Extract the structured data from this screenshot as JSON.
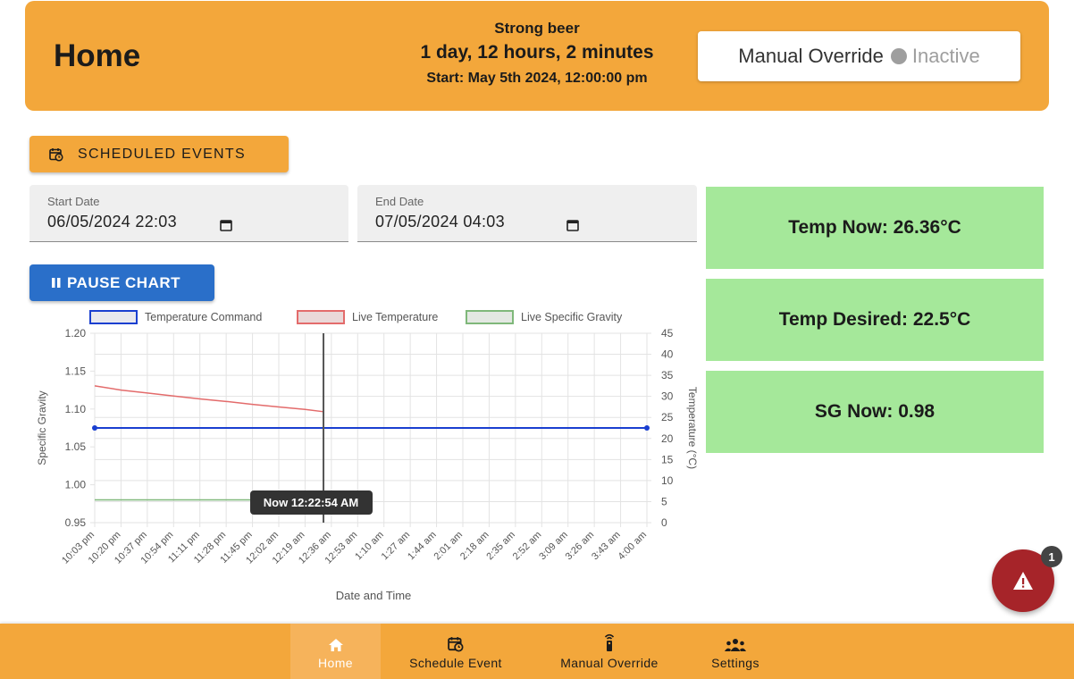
{
  "header": {
    "title": "Home",
    "brew_name": "Strong beer",
    "duration": "1 day, 12 hours, 2 minutes",
    "start": "Start: May 5th 2024, 12:00:00 pm",
    "override_label": "Manual Override",
    "override_status": "Inactive"
  },
  "scheduled_events_label": "SCHEDULED EVENTS",
  "date_range": {
    "start_label": "Start Date",
    "start_value": "06/05/2024 22:03",
    "end_label": "End Date",
    "end_value": "07/05/2024 04:03"
  },
  "pause_label": "PAUSE CHART",
  "stats": {
    "temp_now": "Temp Now: 26.36°C",
    "temp_desired": "Temp Desired: 22.5°C",
    "sg_now": "SG Now: 0.98"
  },
  "alert": {
    "count": "1",
    "icon": "warning-icon"
  },
  "nav": [
    {
      "label": "Home",
      "icon": "home-icon",
      "active": true
    },
    {
      "label": "Schedule Event",
      "icon": "calendar-clock-icon",
      "active": false
    },
    {
      "label": "Manual Override",
      "icon": "remote-icon",
      "active": false
    },
    {
      "label": "Settings",
      "icon": "group-icon",
      "active": false
    }
  ],
  "colors": {
    "accent": "#f3a73b",
    "pause": "#2a6fc9",
    "stat_bg": "#a5e89a",
    "alert": "#a62429",
    "temp_command": "#1a3fd0",
    "live_temp": "#e36b6b",
    "live_sg": "#7fb87a"
  },
  "chart_data": {
    "type": "line",
    "xlabel": "Date and Time",
    "ylabel_left": "Specific Gravity",
    "ylabel_right": "Temperature (°C)",
    "ylim_left": [
      0.95,
      1.2
    ],
    "yticks_left": [
      "1.20",
      "1.15",
      "1.10",
      "1.05",
      "1.00",
      "0.95"
    ],
    "ylim_right": [
      0,
      45
    ],
    "yticks_right": [
      "45",
      "40",
      "35",
      "30",
      "25",
      "20",
      "15",
      "10",
      "5",
      "0"
    ],
    "x_ticks": [
      "10:03 pm",
      "10:20 pm",
      "10:37 pm",
      "10:54 pm",
      "11:11 pm",
      "11:28 pm",
      "11:45 pm",
      "12:02 am",
      "12:19 am",
      "12:36 am",
      "12:53 am",
      "1:10 am",
      "1:27 am",
      "1:44 am",
      "2:01 am",
      "2:18 am",
      "2:35 am",
      "2:52 am",
      "3:09 am",
      "3:26 am",
      "3:43 am",
      "4:00 am"
    ],
    "legend": [
      "Temperature Command",
      "Live Temperature",
      "Live Specific Gravity"
    ],
    "legend_position": "top",
    "grid": true,
    "now_marker": {
      "x_index": 8.7,
      "label": "Now 12:22:54 AM"
    },
    "series": [
      {
        "name": "Temperature Command",
        "axis": "right",
        "x": [
          0,
          21
        ],
        "y": [
          22.5,
          22.5
        ]
      },
      {
        "name": "Live Temperature",
        "axis": "right",
        "x": [
          0,
          1,
          2,
          3,
          4,
          5,
          6,
          7,
          8,
          8.7
        ],
        "y": [
          32.5,
          31.5,
          30.8,
          30.1,
          29.4,
          28.8,
          28.1,
          27.5,
          26.9,
          26.36
        ]
      },
      {
        "name": "Live Specific Gravity",
        "axis": "left",
        "x": [
          0,
          8.7
        ],
        "y": [
          0.98,
          0.98
        ]
      }
    ]
  }
}
